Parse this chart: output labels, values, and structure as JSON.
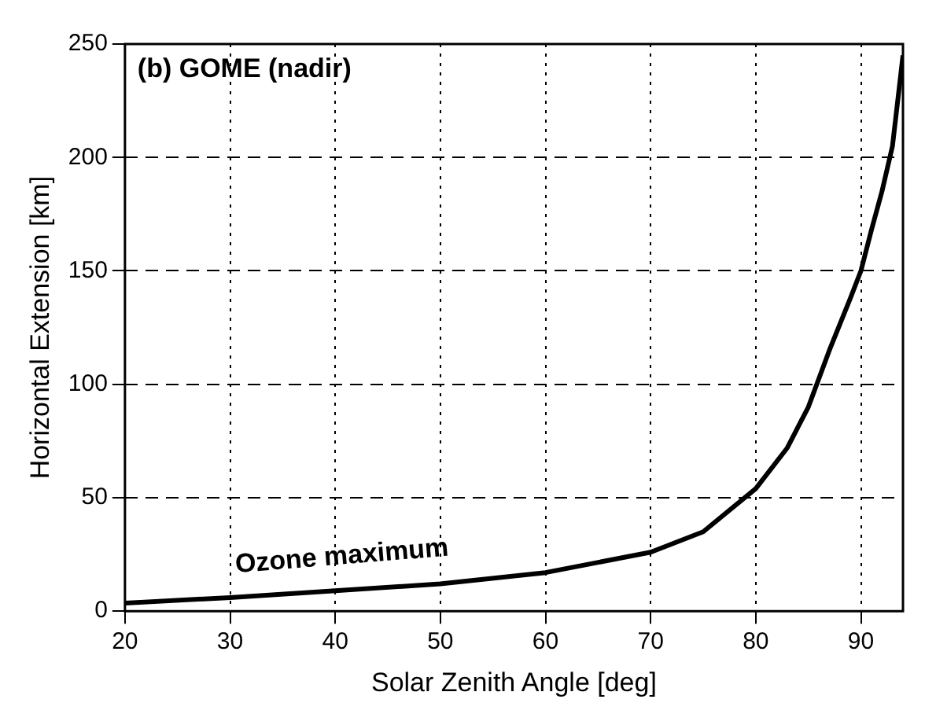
{
  "chart_data": {
    "type": "line",
    "title": "(b) GOME (nadir)",
    "xlabel": "Solar Zenith Angle [deg]",
    "ylabel": "Horizontal Extension [km]",
    "series": [
      {
        "name": "Ozone maximum",
        "color": "#000000",
        "x": [
          20,
          30,
          40,
          50,
          60,
          70,
          75,
          80,
          83,
          85,
          87,
          89,
          90,
          91,
          92,
          93,
          94
        ],
        "values": [
          3.5,
          6,
          9,
          12,
          17,
          26,
          35,
          54,
          72,
          90,
          115,
          138,
          150,
          168,
          185,
          205,
          245
        ]
      }
    ],
    "xlim": [
      20,
      94
    ],
    "ylim": [
      0,
      250
    ],
    "xticks": [
      20,
      30,
      40,
      50,
      60,
      70,
      80,
      90
    ],
    "yticks": [
      0,
      50,
      100,
      150,
      200,
      250
    ],
    "grid": true,
    "legend": false,
    "marker": "none",
    "line_style": "solid"
  }
}
